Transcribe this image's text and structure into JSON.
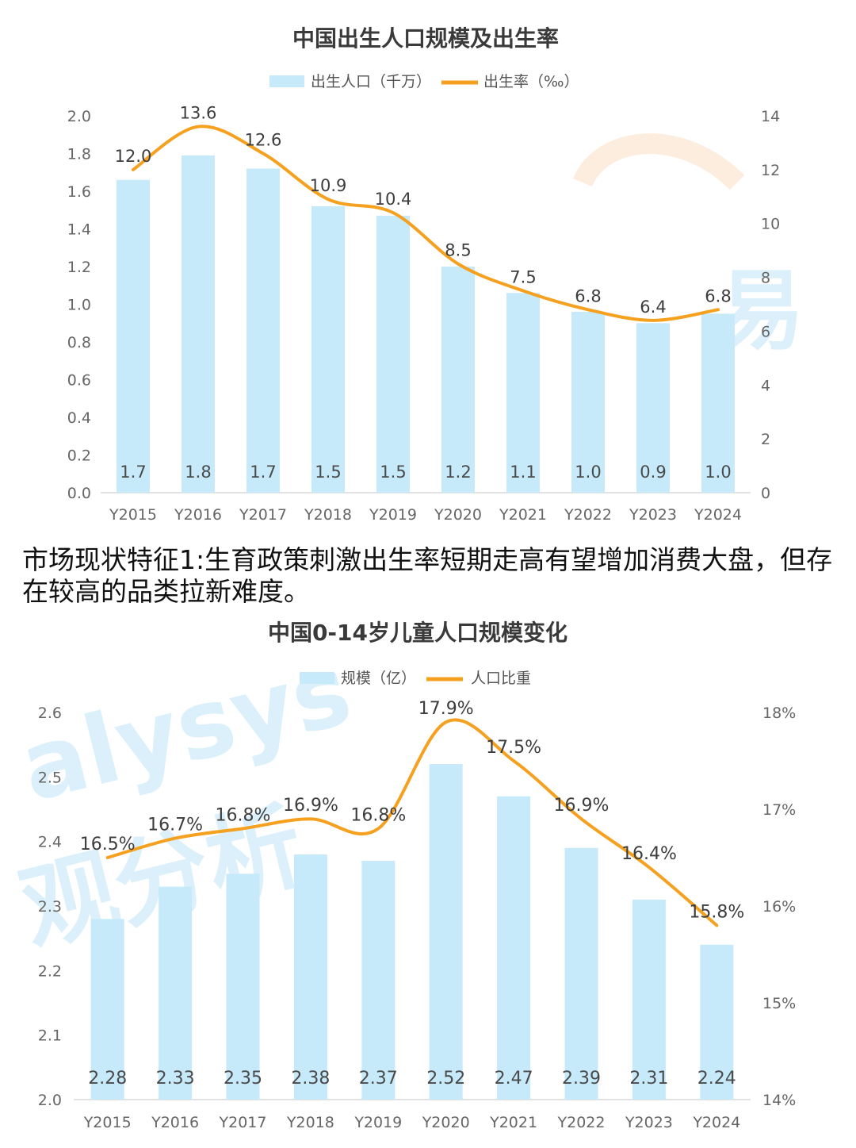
{
  "caption": "市场现状特征1:生育政策刺激出生率短期走高有望增加消费大盘，但存在较高的品类拉新难度。",
  "colors": {
    "bar": "#c7eafb",
    "line": "#f5a11f",
    "title": "#3a3a3a",
    "tick": "#666666"
  },
  "watermarks": [
    "易",
    "alysys",
    "观分析"
  ],
  "chart_data": [
    {
      "type": "bar",
      "title": "中国出生人口规模及出生率",
      "categories": [
        "Y2015",
        "Y2016",
        "Y2017",
        "Y2018",
        "Y2019",
        "Y2020",
        "Y2021",
        "Y2022",
        "Y2023",
        "Y2024"
      ],
      "y_ticks_left": [
        "0.0",
        "0.2",
        "0.4",
        "0.6",
        "0.8",
        "1.0",
        "1.2",
        "1.4",
        "1.6",
        "1.8",
        "2.0"
      ],
      "y_ticks_right": [
        "0",
        "2",
        "4",
        "6",
        "8",
        "10",
        "12",
        "14"
      ],
      "ylim_left": [
        0,
        2.0
      ],
      "ylim_right": [
        0,
        14
      ],
      "grid": false,
      "legend_position": "top",
      "series": [
        {
          "name": "出生人口（千万）",
          "kind": "bar",
          "axis": "left",
          "values": [
            1.66,
            1.79,
            1.72,
            1.52,
            1.47,
            1.2,
            1.06,
            0.96,
            0.9,
            0.95
          ],
          "labels": [
            "1.7",
            "1.8",
            "1.7",
            "1.5",
            "1.5",
            "1.2",
            "1.1",
            "1.0",
            "0.9",
            "1.0"
          ]
        },
        {
          "name": "出生率（‰）",
          "kind": "line",
          "axis": "right",
          "values": [
            12.0,
            13.6,
            12.6,
            10.9,
            10.4,
            8.5,
            7.5,
            6.8,
            6.4,
            6.8
          ],
          "labels": [
            "12.0",
            "13.6",
            "12.6",
            "10.9",
            "10.4",
            "8.5",
            "7.5",
            "6.8",
            "6.4",
            "6.8"
          ]
        }
      ]
    },
    {
      "type": "bar",
      "title": "中国0-14岁儿童人口规模变化",
      "categories": [
        "Y2015",
        "Y2016",
        "Y2017",
        "Y2018",
        "Y2019",
        "Y2020",
        "Y2021",
        "Y2022",
        "Y2023",
        "Y2024"
      ],
      "y_ticks_left": [
        "2.0",
        "2.1",
        "2.2",
        "2.3",
        "2.4",
        "2.5",
        "2.6"
      ],
      "y_ticks_right": [
        "14%",
        "15%",
        "16%",
        "17%",
        "18%"
      ],
      "ylim_left": [
        2.0,
        2.6
      ],
      "ylim_right": [
        14,
        18
      ],
      "grid": false,
      "legend_position": "top",
      "series": [
        {
          "name": "规模（亿）",
          "kind": "bar",
          "axis": "left",
          "values": [
            2.28,
            2.33,
            2.35,
            2.38,
            2.37,
            2.52,
            2.47,
            2.39,
            2.31,
            2.24
          ],
          "labels": [
            "2.28",
            "2.33",
            "2.35",
            "2.38",
            "2.37",
            "2.52",
            "2.47",
            "2.39",
            "2.31",
            "2.24"
          ]
        },
        {
          "name": "人口比重",
          "kind": "line",
          "axis": "right",
          "values": [
            16.5,
            16.7,
            16.8,
            16.9,
            16.8,
            17.9,
            17.5,
            16.9,
            16.4,
            15.8
          ],
          "labels": [
            "16.5%",
            "16.7%",
            "16.8%",
            "16.9%",
            "16.8%",
            "17.9%",
            "17.5%",
            "16.9%",
            "16.4%",
            "15.8%"
          ]
        }
      ]
    }
  ]
}
